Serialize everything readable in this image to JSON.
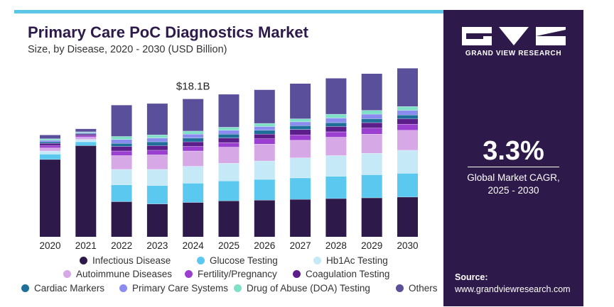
{
  "header": {
    "title": "Primary Care PoC Diagnostics Market",
    "subtitle": "Size, by Disease, 2020 - 2030 (USD Billion)"
  },
  "panel": {
    "brand": "GRAND VIEW RESEARCH",
    "cagr_value": "3.3%",
    "cagr_label_line1": "Global Market CAGR,",
    "cagr_label_line2": "2025 - 2030",
    "source_label": "Source:",
    "source_url": "www.grandviewresearch.com"
  },
  "colors": {
    "accent_top": "#5bc6e8",
    "panel_bg": "#2d1a4a"
  },
  "chart_data": {
    "type": "bar",
    "stacked": true,
    "title": "Primary Care PoC Diagnostics Market",
    "subtitle": "Size, by Disease, 2020 - 2030 (USD Billion)",
    "categories": [
      "2020",
      "2021",
      "2022",
      "2023",
      "2024",
      "2025",
      "2026",
      "2027",
      "2028",
      "2029",
      "2030"
    ],
    "annotation": {
      "category": "2024",
      "text": "$18.1B"
    },
    "totals": [
      13.3,
      13.8,
      17.0,
      17.5,
      18.1,
      18.7,
      19.3,
      20.0,
      20.6,
      21.3,
      22.0
    ],
    "series": [
      {
        "name": "Infectious Disease",
        "color": "#2d1a4a",
        "values": [
          10.1,
          11.9,
          4.6,
          4.3,
          4.5,
          4.7,
          4.8,
          4.9,
          5.0,
          5.1,
          5.2
        ]
      },
      {
        "name": "Glucose Testing",
        "color": "#5bc8f0",
        "values": [
          0.7,
          0.5,
          2.2,
          2.4,
          2.5,
          2.6,
          2.7,
          2.8,
          2.9,
          3.0,
          3.1
        ]
      },
      {
        "name": "Hb1Ac Testing",
        "color": "#c6e9f7",
        "values": [
          0.4,
          0.3,
          2.0,
          2.1,
          2.2,
          2.3,
          2.4,
          2.6,
          2.7,
          2.8,
          3.0
        ]
      },
      {
        "name": "Autoimmune Diseases",
        "color": "#d6a8e6",
        "values": [
          0.4,
          0.3,
          1.8,
          1.9,
          2.0,
          2.1,
          2.2,
          2.3,
          2.4,
          2.5,
          2.6
        ]
      },
      {
        "name": "Fertility/Pregnancy",
        "color": "#9a3fd0",
        "values": [
          0.3,
          0.2,
          0.6,
          0.6,
          0.6,
          0.6,
          0.7,
          0.7,
          0.7,
          0.8,
          0.8
        ]
      },
      {
        "name": "Coagulation Testing",
        "color": "#5b1e8a",
        "values": [
          0.3,
          0.2,
          0.6,
          0.6,
          0.6,
          0.6,
          0.6,
          0.7,
          0.7,
          0.7,
          0.7
        ]
      },
      {
        "name": "Cardiac Markers",
        "color": "#1f6f9a",
        "values": [
          0.2,
          0.1,
          0.4,
          0.5,
          0.5,
          0.5,
          0.5,
          0.5,
          0.5,
          0.5,
          0.5
        ]
      },
      {
        "name": "Primary Care Systems",
        "color": "#8a8cef",
        "values": [
          0.2,
          0.1,
          0.5,
          0.5,
          0.5,
          0.5,
          0.5,
          0.5,
          0.6,
          0.6,
          0.6
        ]
      },
      {
        "name": "Drug of Abuse (DOA) Testing",
        "color": "#7fe0c8",
        "values": [
          0.2,
          0.1,
          0.4,
          0.4,
          0.4,
          0.4,
          0.4,
          0.4,
          0.5,
          0.5,
          0.5
        ]
      },
      {
        "name": "Others",
        "color": "#5a4f9a",
        "values": [
          0.5,
          0.4,
          4.1,
          4.1,
          4.2,
          4.3,
          4.4,
          4.6,
          4.7,
          4.8,
          5.0
        ]
      }
    ],
    "ylim": [
      0,
      22.0
    ],
    "grid": false,
    "legend_position": "bottom"
  }
}
